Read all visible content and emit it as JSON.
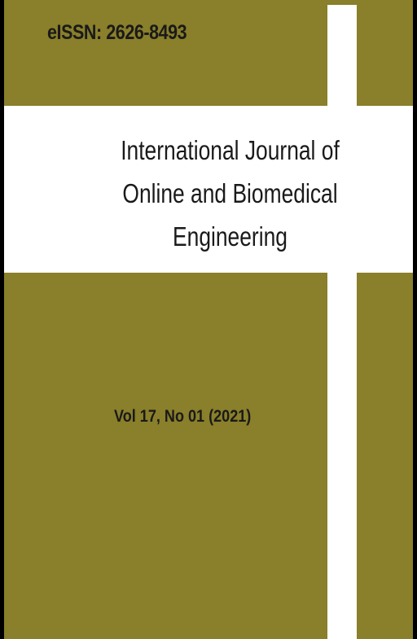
{
  "cover": {
    "issn": "eISSN: 2626-8493",
    "title_lines": [
      "International Journal of",
      "Online and Biomedical",
      "Engineering"
    ],
    "volume": "Vol 17, No 01 (2021)"
  },
  "colors": {
    "background": "#8a7f2a",
    "band": "#ffffff",
    "text": "#1a1a1a",
    "border": "#000000"
  }
}
